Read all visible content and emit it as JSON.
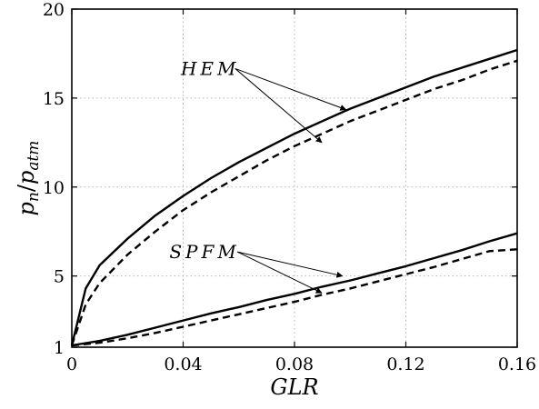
{
  "chart_data": {
    "type": "line",
    "xlabel": "GLR",
    "ylabel": "p_n/p_atm",
    "xlim": [
      0,
      0.16
    ],
    "ylim": [
      1,
      20
    ],
    "xticks": [
      0,
      0.04,
      0.08,
      0.12,
      0.16
    ],
    "xtick_labels": [
      "0",
      "0.04",
      "0.08",
      "0.12",
      "0.16"
    ],
    "yticks": [
      1,
      5,
      10,
      15,
      20
    ],
    "ytick_labels": [
      "1",
      "5",
      "10",
      "15",
      "20"
    ],
    "grid": true,
    "series": [
      {
        "group": "HEM",
        "style": "solid",
        "x": [
          0,
          0.005,
          0.01,
          0.02,
          0.03,
          0.04,
          0.05,
          0.06,
          0.07,
          0.08,
          0.09,
          0.1,
          0.11,
          0.12,
          0.13,
          0.14,
          0.15,
          0.16
        ],
        "y": [
          1.1,
          4.3,
          5.6,
          7.1,
          8.4,
          9.5,
          10.5,
          11.4,
          12.2,
          13.0,
          13.7,
          14.4,
          15.0,
          15.6,
          16.2,
          16.7,
          17.2,
          17.7
        ]
      },
      {
        "group": "HEM",
        "style": "dashed",
        "x": [
          0,
          0.005,
          0.01,
          0.02,
          0.03,
          0.04,
          0.05,
          0.06,
          0.07,
          0.08,
          0.09,
          0.1,
          0.11,
          0.12,
          0.13,
          0.14,
          0.15,
          0.16
        ],
        "y": [
          1.1,
          3.4,
          4.6,
          6.2,
          7.5,
          8.7,
          9.7,
          10.6,
          11.5,
          12.3,
          13.0,
          13.7,
          14.3,
          14.9,
          15.5,
          16.0,
          16.6,
          17.1
        ]
      },
      {
        "group": "SPFM",
        "style": "solid",
        "x": [
          0,
          0.01,
          0.02,
          0.03,
          0.04,
          0.05,
          0.06,
          0.07,
          0.08,
          0.09,
          0.1,
          0.11,
          0.12,
          0.13,
          0.14,
          0.15,
          0.16
        ],
        "y": [
          1.1,
          1.35,
          1.7,
          2.1,
          2.5,
          2.9,
          3.25,
          3.65,
          4.0,
          4.4,
          4.75,
          5.15,
          5.55,
          6.0,
          6.45,
          6.95,
          7.4
        ]
      },
      {
        "group": "SPFM",
        "style": "dashed",
        "x": [
          0,
          0.01,
          0.02,
          0.03,
          0.04,
          0.05,
          0.06,
          0.07,
          0.08,
          0.09,
          0.1,
          0.11,
          0.12,
          0.13,
          0.14,
          0.15,
          0.16
        ],
        "y": [
          1.1,
          1.25,
          1.5,
          1.8,
          2.15,
          2.5,
          2.85,
          3.2,
          3.55,
          3.95,
          4.3,
          4.7,
          5.1,
          5.5,
          5.95,
          6.4,
          6.5
        ]
      }
    ],
    "annotations": [
      {
        "text": "HEM",
        "label_at": [
          0.0497,
          16.3
        ],
        "arrows_to": [
          [
            0.0985,
            14.35
          ],
          [
            0.0898,
            12.5
          ]
        ]
      },
      {
        "text": "SPFM",
        "label_at": [
          0.0477,
          6.0
        ],
        "arrows_to": [
          [
            0.0972,
            5.0
          ],
          [
            0.0898,
            4.05
          ]
        ]
      }
    ]
  }
}
